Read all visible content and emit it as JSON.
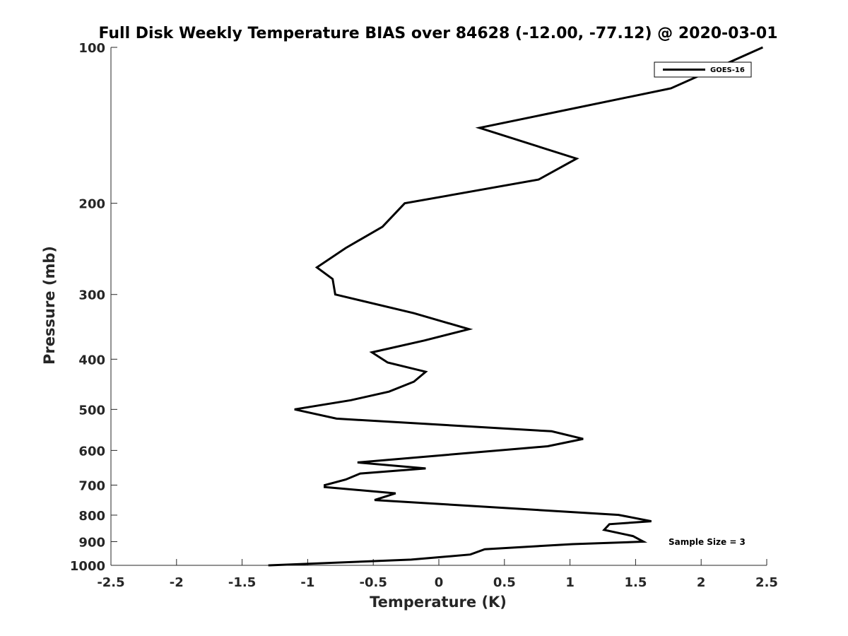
{
  "chart_data": {
    "type": "line",
    "title": "Full Disk Weekly Temperature BIAS over 84628 (-12.00, -77.12) @ 2020-03-01",
    "xlabel": "Temperature (K)",
    "ylabel": "Pressure (mb)",
    "xlim": [
      -2.5,
      2.5
    ],
    "ylim": [
      1000,
      100
    ],
    "y_scale": "log",
    "y_reversed": true,
    "grid": false,
    "x_ticks": [
      "-2.5",
      "-2",
      "-1.5",
      "-1",
      "-0.5",
      "0",
      "0.5",
      "1",
      "1.5",
      "2",
      "2.5"
    ],
    "x_tick_values": [
      -2.5,
      -2,
      -1.5,
      -1,
      -0.5,
      0,
      0.5,
      1,
      1.5,
      2,
      2.5
    ],
    "y_ticks": [
      "100",
      "200",
      "300",
      "400",
      "500",
      "600",
      "700",
      "800",
      "900",
      "1000"
    ],
    "y_tick_values": [
      100,
      200,
      300,
      400,
      500,
      600,
      700,
      800,
      900,
      1000
    ],
    "legend": {
      "position": "top-right",
      "entries": [
        "GOES-16"
      ]
    },
    "annotation": "Sample Size = 3",
    "series": [
      {
        "name": "GOES-16",
        "color": "#000000",
        "points": [
          [
            2.47,
            100
          ],
          [
            1.77,
            120
          ],
          [
            0.31,
            143
          ],
          [
            1.05,
            164
          ],
          [
            0.76,
            180
          ],
          [
            -0.26,
            200
          ],
          [
            -0.43,
            222
          ],
          [
            -0.71,
            244
          ],
          [
            -0.93,
            266
          ],
          [
            -0.81,
            280
          ],
          [
            -0.79,
            300
          ],
          [
            -0.19,
            326
          ],
          [
            0.23,
            350
          ],
          [
            -0.11,
            368
          ],
          [
            -0.51,
            388
          ],
          [
            -0.39,
            406
          ],
          [
            -0.1,
            423
          ],
          [
            -0.19,
            442
          ],
          [
            -0.38,
            462
          ],
          [
            -0.67,
            480
          ],
          [
            -1.1,
            500
          ],
          [
            -0.78,
            521
          ],
          [
            0.86,
            551
          ],
          [
            1.1,
            570
          ],
          [
            0.83,
            589
          ],
          [
            -0.62,
            633
          ],
          [
            -0.1,
            650
          ],
          [
            -0.6,
            665
          ],
          [
            -0.71,
            683
          ],
          [
            -0.87,
            700
          ],
          [
            -0.87,
            706
          ],
          [
            -0.33,
            726
          ],
          [
            -0.49,
            748
          ],
          [
            1.37,
            799
          ],
          [
            1.62,
            822
          ],
          [
            1.3,
            833
          ],
          [
            1.26,
            854
          ],
          [
            1.48,
            878
          ],
          [
            1.56,
            900
          ],
          [
            1.02,
            910
          ],
          [
            0.35,
            931
          ],
          [
            0.24,
            953
          ],
          [
            -0.21,
            975
          ],
          [
            -1.3,
            1000
          ]
        ]
      }
    ]
  }
}
